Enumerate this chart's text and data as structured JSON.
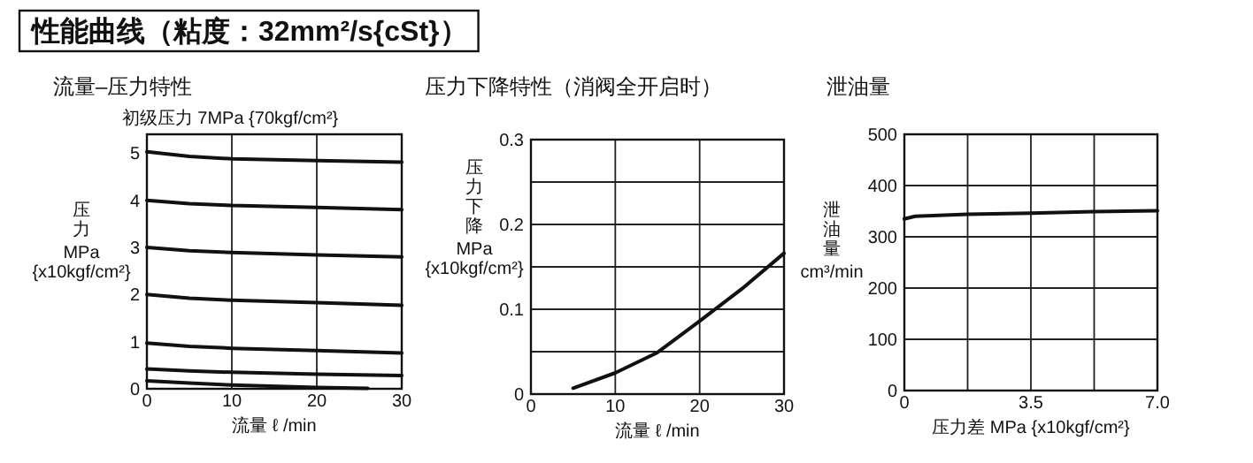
{
  "chart_data": [
    {
      "type": "line",
      "title": "性能曲线（粘度：32mm²/s{cSt}）",
      "subtitle": "流量–压力特性",
      "annotations": [
        "初级压力 7MPa {70kgf/cm²}"
      ],
      "xlabel": "流量 ℓ /min",
      "ylabel": "压力\nMPa\n{x10kgf/cm²}",
      "xlim": [
        0,
        30
      ],
      "xticks": [
        0,
        10,
        20,
        30
      ],
      "ylim": [
        0,
        5.4
      ],
      "yticks": [
        0,
        1,
        2,
        3,
        4,
        5
      ],
      "grid": "x",
      "marker": "none",
      "line_style": "solid",
      "series": [
        {
          "color": "#111111",
          "x": [
            0,
            5,
            10,
            20,
            30
          ],
          "values": [
            5.03,
            4.93,
            4.88,
            4.84,
            4.81
          ]
        },
        {
          "color": "#111111",
          "x": [
            0,
            5,
            10,
            20,
            30
          ],
          "values": [
            4.0,
            3.93,
            3.89,
            3.85,
            3.8
          ]
        },
        {
          "color": "#111111",
          "x": [
            0,
            5,
            10,
            20,
            30
          ],
          "values": [
            3.0,
            2.93,
            2.89,
            2.84,
            2.8
          ]
        },
        {
          "color": "#111111",
          "x": [
            0,
            5,
            10,
            20,
            30
          ],
          "values": [
            2.0,
            1.92,
            1.88,
            1.83,
            1.77
          ]
        },
        {
          "color": "#111111",
          "x": [
            0,
            5,
            10,
            20,
            30
          ],
          "values": [
            0.97,
            0.9,
            0.86,
            0.81,
            0.76
          ]
        },
        {
          "color": "#111111",
          "x": [
            0,
            5,
            10,
            20,
            30
          ],
          "values": [
            0.42,
            0.38,
            0.35,
            0.31,
            0.28
          ]
        },
        {
          "color": "#111111",
          "x": [
            0,
            5,
            10,
            20,
            26
          ],
          "values": [
            0.17,
            0.12,
            0.08,
            0.03,
            0.01
          ]
        }
      ]
    },
    {
      "type": "line",
      "title": "压力下降特性（消阀全开启时）",
      "xlabel": "流量 ℓ /min",
      "ylabel": "压力下降\nMPa\n{x10kgf/cm²}",
      "xlim": [
        0,
        30
      ],
      "xticks": [
        0,
        10,
        20,
        30
      ],
      "ylim": [
        0,
        0.3
      ],
      "yticks": [
        0,
        {
          "value": 0.05,
          "label": null
        },
        0.1,
        {
          "value": 0.15,
          "label": null
        },
        0.2,
        {
          "value": 0.25,
          "label": null
        },
        0.3
      ],
      "grid": true,
      "marker": "none",
      "line_style": "solid",
      "series": [
        {
          "color": "#111111",
          "x": [
            5,
            10,
            15,
            20,
            25,
            30
          ],
          "values": [
            0.007,
            0.025,
            0.049,
            0.086,
            0.124,
            0.166
          ]
        }
      ]
    },
    {
      "type": "line",
      "title": "泄油量",
      "xlabel": "压力差 MPa {x10kgf/cm²}",
      "ylabel": "泄油量\ncm³/min",
      "xlim": [
        0,
        7
      ],
      "xticks": [
        0,
        {
          "value": 1.75,
          "label": null
        },
        3.5,
        {
          "value": 5.25,
          "label": null
        },
        {
          "value": 7,
          "label": "7.0"
        }
      ],
      "ylim": [
        0,
        500
      ],
      "yticks": [
        0,
        100,
        200,
        300,
        400,
        500
      ],
      "grid": true,
      "marker": "none",
      "line_style": "solid",
      "series": [
        {
          "color": "#111111",
          "x": [
            0,
            0.3,
            1.75,
            3.5,
            5.25,
            7
          ],
          "values": [
            335,
            340,
            344,
            346,
            349,
            351
          ]
        }
      ]
    }
  ]
}
